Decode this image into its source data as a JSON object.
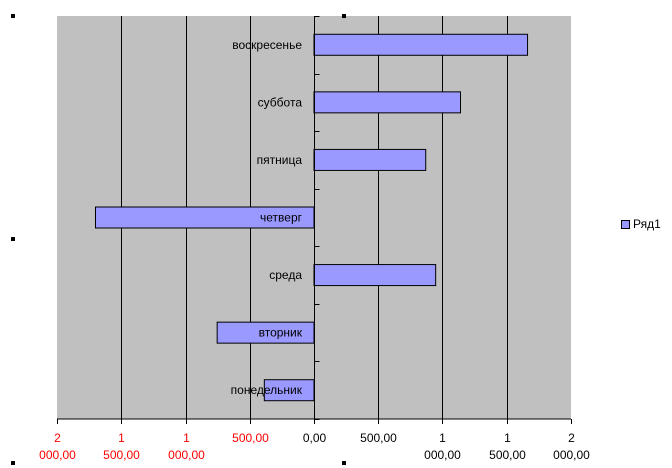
{
  "chart_data": {
    "type": "bar",
    "orientation": "horizontal",
    "categories": [
      "понедельник",
      "вторник",
      "среда",
      "четверг",
      "пятница",
      "суббота",
      "воскресенье"
    ],
    "series": [
      {
        "name": "Ряд1",
        "values": [
          -200,
          -390,
          490,
          -880,
          450,
          590,
          860
        ]
      }
    ],
    "xlim": [
      -1035,
      1035
    ],
    "x_ticks": [
      {
        "value": -1035,
        "line1": "2",
        "line2": "000,00"
      },
      {
        "value": -776,
        "line1": "1",
        "line2": "500,00"
      },
      {
        "value": -517,
        "line1": "1",
        "line2": "000,00"
      },
      {
        "value": -259,
        "line1": "500,00",
        "line2": ""
      },
      {
        "value": 0,
        "line1": "0,00",
        "line2": ""
      },
      {
        "value": 259,
        "line1": "500,00",
        "line2": ""
      },
      {
        "value": 517,
        "line1": "1",
        "line2": "000,00"
      },
      {
        "value": 776,
        "line1": "1",
        "line2": "500,00"
      },
      {
        "value": 1035,
        "line1": "2",
        "line2": "000,00"
      }
    ],
    "grid": true,
    "legend": "right",
    "colors": {
      "plot_bg": "#c0c0c0",
      "bar_fill": "#9999ff",
      "bar_stroke": "#000000",
      "negative_tick_text": "#ff0000",
      "positive_tick_text": "#000000",
      "gridline": "#000000"
    }
  }
}
